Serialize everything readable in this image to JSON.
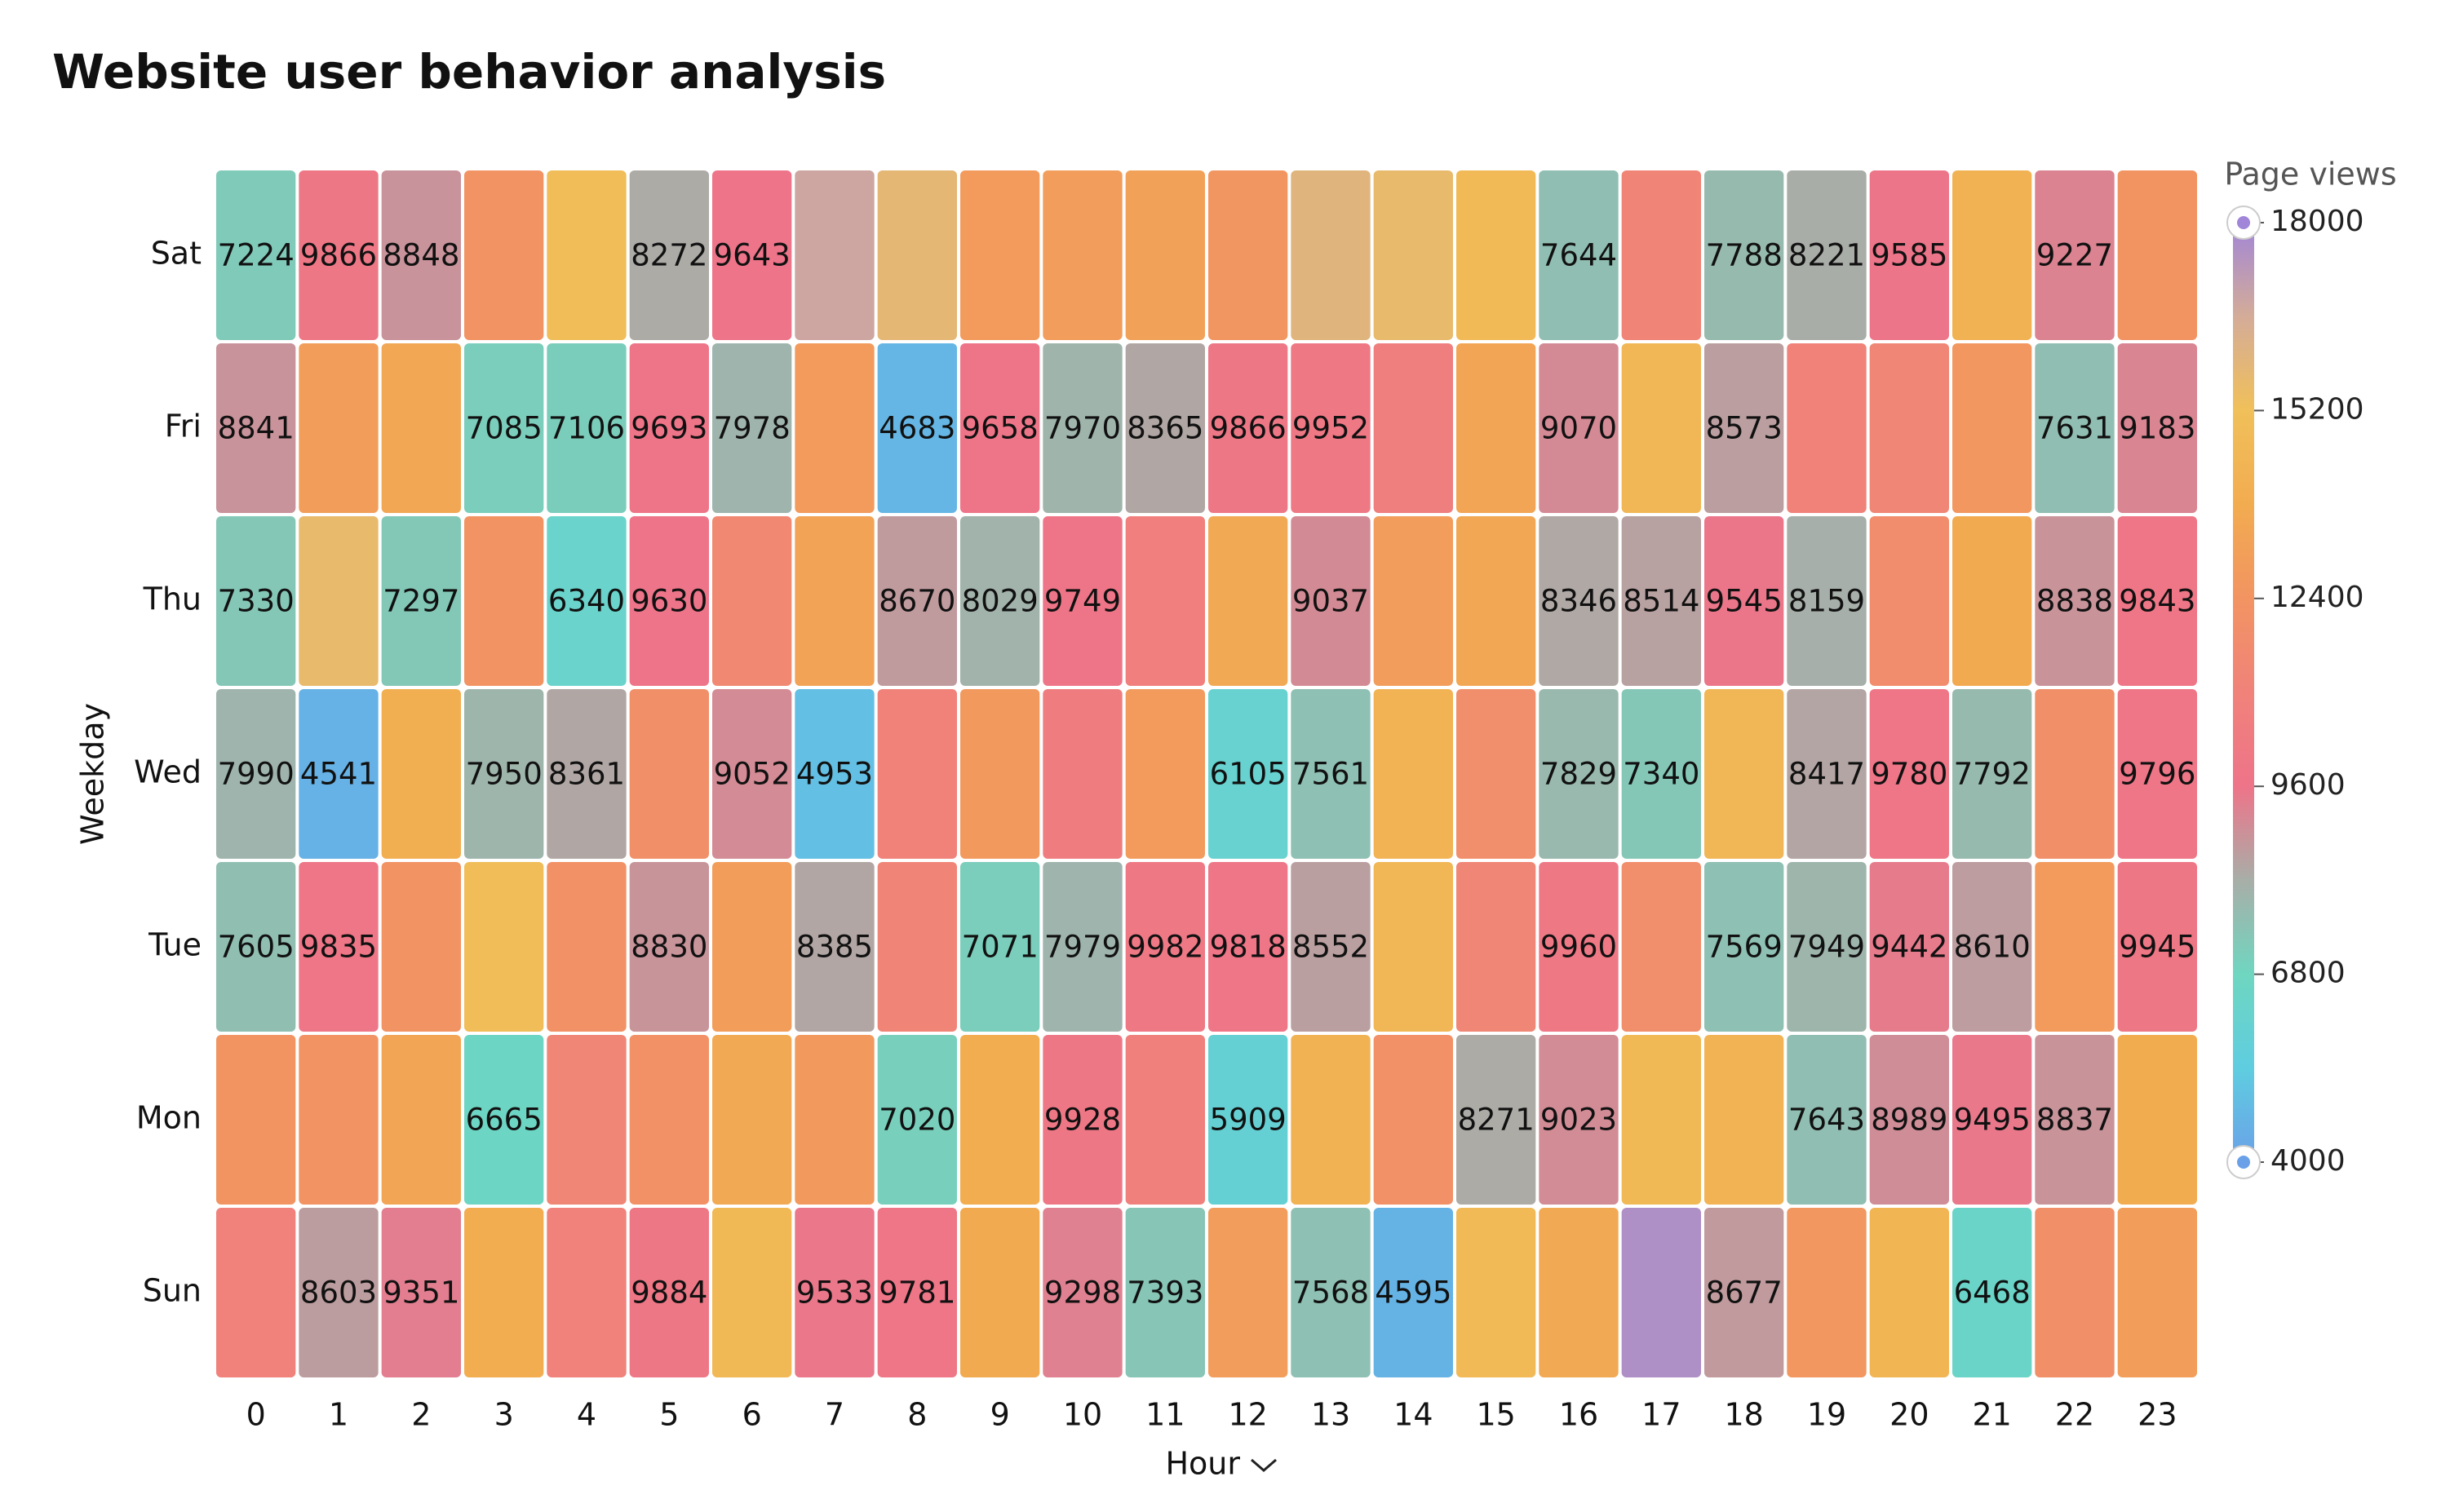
{
  "chart_data": {
    "type": "heatmap",
    "title": "Website user behavior analysis",
    "x_label": "Hour",
    "y_label": "Weekday",
    "legend_title": "Page views",
    "x": [
      "0",
      "1",
      "2",
      "3",
      "4",
      "5",
      "6",
      "7",
      "8",
      "9",
      "10",
      "11",
      "12",
      "13",
      "14",
      "15",
      "16",
      "17",
      "18",
      "19",
      "20",
      "21",
      "22",
      "23"
    ],
    "y": [
      "Sun",
      "Mon",
      "Tue",
      "Wed",
      "Thu",
      "Fri",
      "Sat"
    ],
    "values": [
      [
        10900,
        8603,
        9351,
        13900,
        10900,
        9884,
        14700,
        9533,
        9781,
        13700,
        9298,
        7393,
        12900,
        7568,
        4595,
        14800,
        13600,
        17600,
        8677,
        12600,
        14400,
        6468,
        12000,
        13000
      ],
      [
        12400,
        12300,
        13400,
        6665,
        11300,
        12200,
        13600,
        12700,
        7020,
        13900,
        9928,
        10800,
        5909,
        14200,
        12100,
        8271,
        9023,
        14700,
        14300,
        7643,
        8989,
        9495,
        8837,
        13800
      ],
      [
        7605,
        9835,
        12300,
        15000,
        12200,
        8830,
        13000,
        8385,
        11200,
        7071,
        7979,
        9982,
        9818,
        8552,
        14600,
        11300,
        9960,
        11900,
        7569,
        7949,
        9442,
        8610,
        12800,
        9945
      ],
      [
        7990,
        4541,
        14000,
        7950,
        8361,
        12000,
        9052,
        4953,
        11000,
        12700,
        10500,
        12800,
        6105,
        7561,
        14300,
        11900,
        7829,
        7340,
        14500,
        8417,
        9780,
        7792,
        12000,
        9796
      ],
      [
        7330,
        15600,
        7297,
        12300,
        6340,
        9630,
        11500,
        13300,
        8670,
        8029,
        9749,
        10700,
        13600,
        9037,
        12900,
        13500,
        8346,
        8514,
        9545,
        8159,
        11800,
        13700,
        8838,
        9843
      ],
      [
        8841,
        13000,
        13500,
        7085,
        7106,
        9693,
        7978,
        12800,
        4683,
        9658,
        7970,
        8365,
        9866,
        9952,
        10600,
        13400,
        9070,
        14600,
        8573,
        11000,
        11300,
        12600,
        7631,
        9183
      ],
      [
        7224,
        9866,
        8848,
        12300,
        15000,
        8272,
        9643,
        16800,
        15800,
        12800,
        12900,
        13200,
        12500,
        16000,
        15600,
        14800,
        7644,
        11200,
        7788,
        8221,
        9585,
        14200,
        9227,
        12400
      ]
    ],
    "value_labels": [
      [
        null,
        8603,
        9351,
        null,
        null,
        9884,
        null,
        9533,
        9781,
        null,
        9298,
        7393,
        null,
        7568,
        4595,
        null,
        null,
        null,
        8677,
        null,
        null,
        6468,
        null,
        null
      ],
      [
        null,
        null,
        null,
        6665,
        null,
        null,
        null,
        null,
        7020,
        null,
        9928,
        null,
        5909,
        null,
        null,
        8271,
        9023,
        null,
        null,
        7643,
        8989,
        9495,
        8837,
        null
      ],
      [
        7605,
        9835,
        null,
        null,
        null,
        8830,
        null,
        8385,
        null,
        7071,
        7979,
        9982,
        9818,
        8552,
        null,
        null,
        9960,
        null,
        7569,
        7949,
        9442,
        8610,
        null,
        9945
      ],
      [
        7990,
        4541,
        null,
        7950,
        8361,
        null,
        9052,
        4953,
        null,
        null,
        null,
        null,
        6105,
        7561,
        null,
        null,
        7829,
        7340,
        null,
        8417,
        9780,
        7792,
        null,
        9796
      ],
      [
        7330,
        null,
        7297,
        null,
        6340,
        9630,
        null,
        null,
        8670,
        8029,
        9749,
        null,
        null,
        9037,
        null,
        null,
        8346,
        8514,
        9545,
        8159,
        null,
        null,
        8838,
        9843
      ],
      [
        8841,
        null,
        null,
        7085,
        7106,
        9693,
        7978,
        null,
        4683,
        9658,
        7970,
        8365,
        9866,
        9952,
        null,
        null,
        9070,
        null,
        8573,
        null,
        null,
        null,
        7631,
        9183
      ],
      [
        7224,
        9866,
        8848,
        null,
        null,
        8272,
        9643,
        null,
        null,
        null,
        null,
        null,
        null,
        null,
        null,
        null,
        7644,
        null,
        7788,
        8221,
        9585,
        null,
        9227,
        null
      ]
    ],
    "visual_range": [
      4000,
      18000
    ],
    "legend_ticks": [
      4000,
      6800,
      9600,
      12400,
      15200,
      18000
    ],
    "colorscale": [
      "#6aa0e8",
      "#5fcde0",
      "#6fd6c0",
      "#a8aea8",
      "#ee7489",
      "#f0827a",
      "#f29462",
      "#f2ac50",
      "#f0c05a",
      "#d4ac98",
      "#a085d8"
    ]
  }
}
